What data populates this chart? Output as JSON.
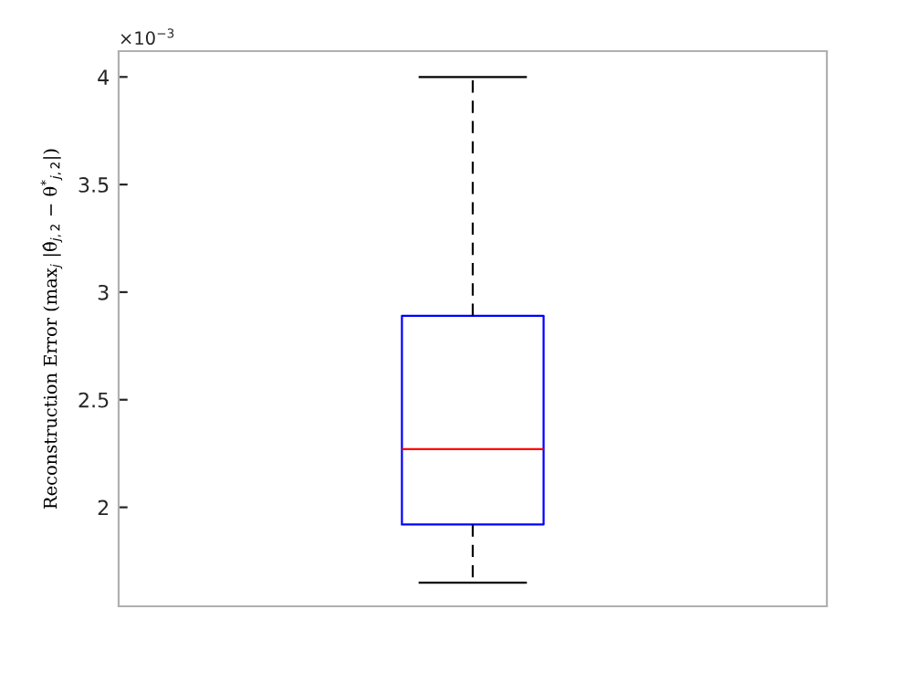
{
  "chart_data": {
    "type": "box",
    "ylabel": "Reconstruction Error (max$_{j}$ |θ̂$_{j,2}$ − θ$^{*}$$_{j,2}$|)",
    "annotations": [
      "×10$^{−3}$"
    ],
    "categories": [
      null
    ],
    "boxes": [
      {
        "low": 1.65,
        "q1": 1.92,
        "median": 2.27,
        "q3": 2.89,
        "high": 4.0
      }
    ],
    "ylim": [
      1.54,
      4.12
    ],
    "yticks": [
      2,
      2.5,
      3,
      3.5,
      4
    ],
    "grid": false
  }
}
